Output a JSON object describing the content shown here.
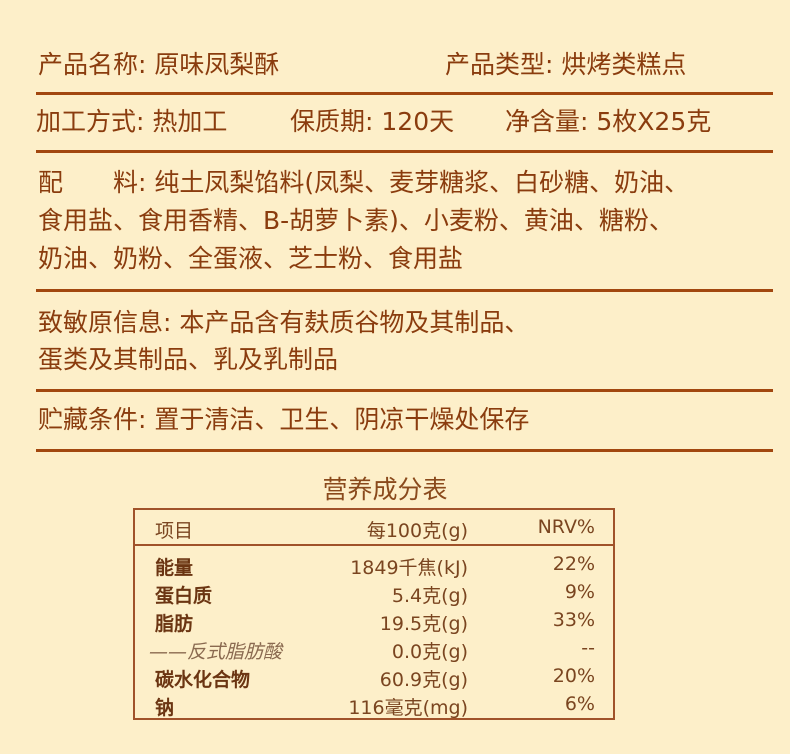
{
  "product_name": {
    "label": "产品名称:",
    "value": "原味凤梨酥"
  },
  "product_type": {
    "label": "产品类型:",
    "value": "烘烤类糕点"
  },
  "process": {
    "label": "加工方式:",
    "value": "热加工"
  },
  "shelf_life": {
    "label": "保质期:",
    "value": "120天"
  },
  "net_content": {
    "label": "净含量:",
    "value": "5枚X25克"
  },
  "ingredients": {
    "label": "配　　料:",
    "lines": [
      "纯土凤梨馅料(凤梨、麦芽糖浆、白砂糖、奶油、",
      "食用盐、食用香精、B-胡萝卜素)、小麦粉、黄油、糖粉、",
      "奶油、奶粉、全蛋液、芝士粉、食用盐"
    ]
  },
  "allergen": {
    "label": "致敏原信息:",
    "lines": [
      "本产品含有麸质谷物及其制品、",
      "蛋类及其制品、乳及乳制品"
    ]
  },
  "storage": {
    "label": "贮藏条件:",
    "value": "置于清洁、卫生、阴凉干燥处保存"
  },
  "nutrition": {
    "title": "营养成分表",
    "headers": [
      "项目",
      "每100克(g)",
      "NRV%"
    ],
    "rows": [
      [
        "能量",
        "1849千焦(kJ)",
        "22%"
      ],
      [
        "蛋白质",
        "5.4克(g)",
        "9%"
      ],
      [
        "脂肪",
        "19.5克(g)",
        "33%"
      ],
      [
        "——反式脂肪酸",
        "0.0克(g)",
        "--"
      ],
      [
        "碳水化合物",
        "60.9克(g)",
        "20%"
      ],
      [
        "钠",
        "116毫克(mg)",
        "6%"
      ]
    ]
  }
}
